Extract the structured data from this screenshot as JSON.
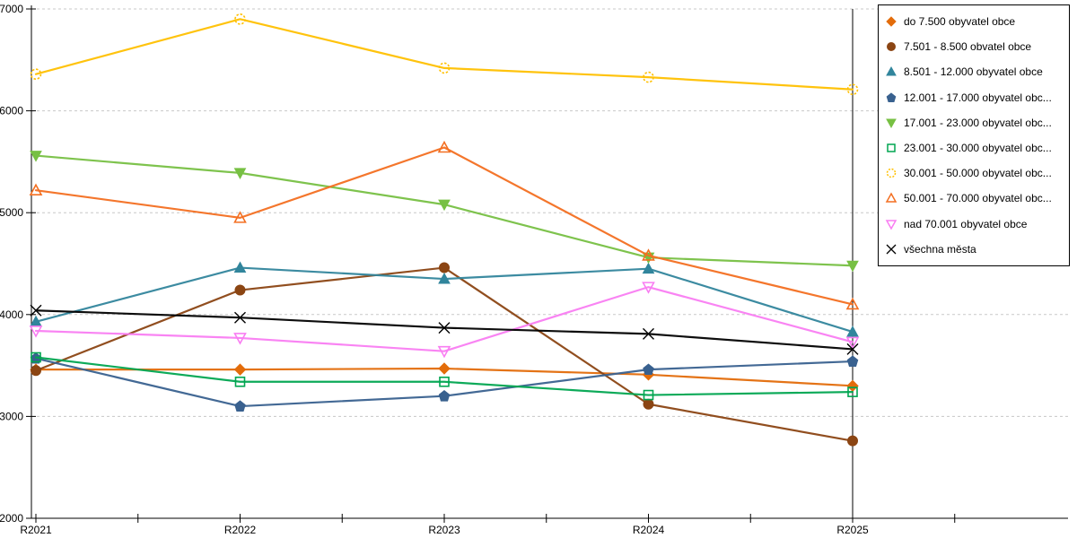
{
  "chart_data": {
    "type": "line",
    "title": "",
    "xlabel": "",
    "ylabel": "",
    "x": [
      "R2021",
      "R2022",
      "R2023",
      "R2024",
      "R2025"
    ],
    "ylim": [
      2000,
      7000
    ],
    "yticks": [
      2000,
      3000,
      4000,
      5000,
      6000,
      7000
    ],
    "grid": "horizontal dashed",
    "legend_position": "right",
    "series": [
      {
        "name": "do 7.500 obyvatel obce",
        "color": "#E36C0A",
        "marker": "diamond",
        "fill": "solid",
        "values": [
          3460,
          3460,
          3470,
          3410,
          3300
        ]
      },
      {
        "name": "7.501 - 8.500 obvatel obce",
        "color": "#8B4513",
        "marker": "circle",
        "fill": "solid",
        "values": [
          3450,
          4240,
          4460,
          3120,
          2760
        ]
      },
      {
        "name": "8.501 - 12.000 obyvatel obce",
        "color": "#31859C",
        "marker": "triangle-up",
        "fill": "solid",
        "values": [
          3930,
          4460,
          4350,
          4450,
          3830
        ]
      },
      {
        "name": "12.001 - 17.000 obyvatel obc...",
        "color": "#39618F",
        "marker": "pentagon",
        "fill": "solid",
        "values": [
          3570,
          3100,
          3200,
          3460,
          3540
        ]
      },
      {
        "name": "17.001 - 23.000 obyvatel obc...",
        "color": "#77C043",
        "marker": "triangle-down",
        "fill": "solid",
        "values": [
          5560,
          5390,
          5080,
          4560,
          4480
        ]
      },
      {
        "name": "23.001 - 30.000 obyvatel obc...",
        "color": "#00A550",
        "marker": "square",
        "fill": "hollow",
        "values": [
          3580,
          3340,
          3340,
          3210,
          3240
        ]
      },
      {
        "name": "30.001 - 50.000 obyvatel obc...",
        "color": "#FFC000",
        "marker": "circle-dashed",
        "fill": "hollow",
        "values": [
          6360,
          6900,
          6420,
          6330,
          6210
        ]
      },
      {
        "name": "50.001 - 70.000 obyvatel obc...",
        "color": "#F36F21",
        "marker": "triangle-up",
        "fill": "hollow",
        "values": [
          5220,
          4950,
          5640,
          4580,
          4100
        ]
      },
      {
        "name": "nad 70.001 obyvatel obce",
        "color": "#F97DF2",
        "marker": "triangle-down",
        "fill": "hollow",
        "values": [
          3840,
          3770,
          3640,
          4270,
          3730
        ]
      },
      {
        "name": "všechna města",
        "color": "#000000",
        "marker": "x",
        "fill": "stroke",
        "values": [
          4040,
          3970,
          3870,
          3810,
          3660
        ]
      }
    ],
    "axis_color": "#000000",
    "gridline_color": "#c8c8c8"
  }
}
